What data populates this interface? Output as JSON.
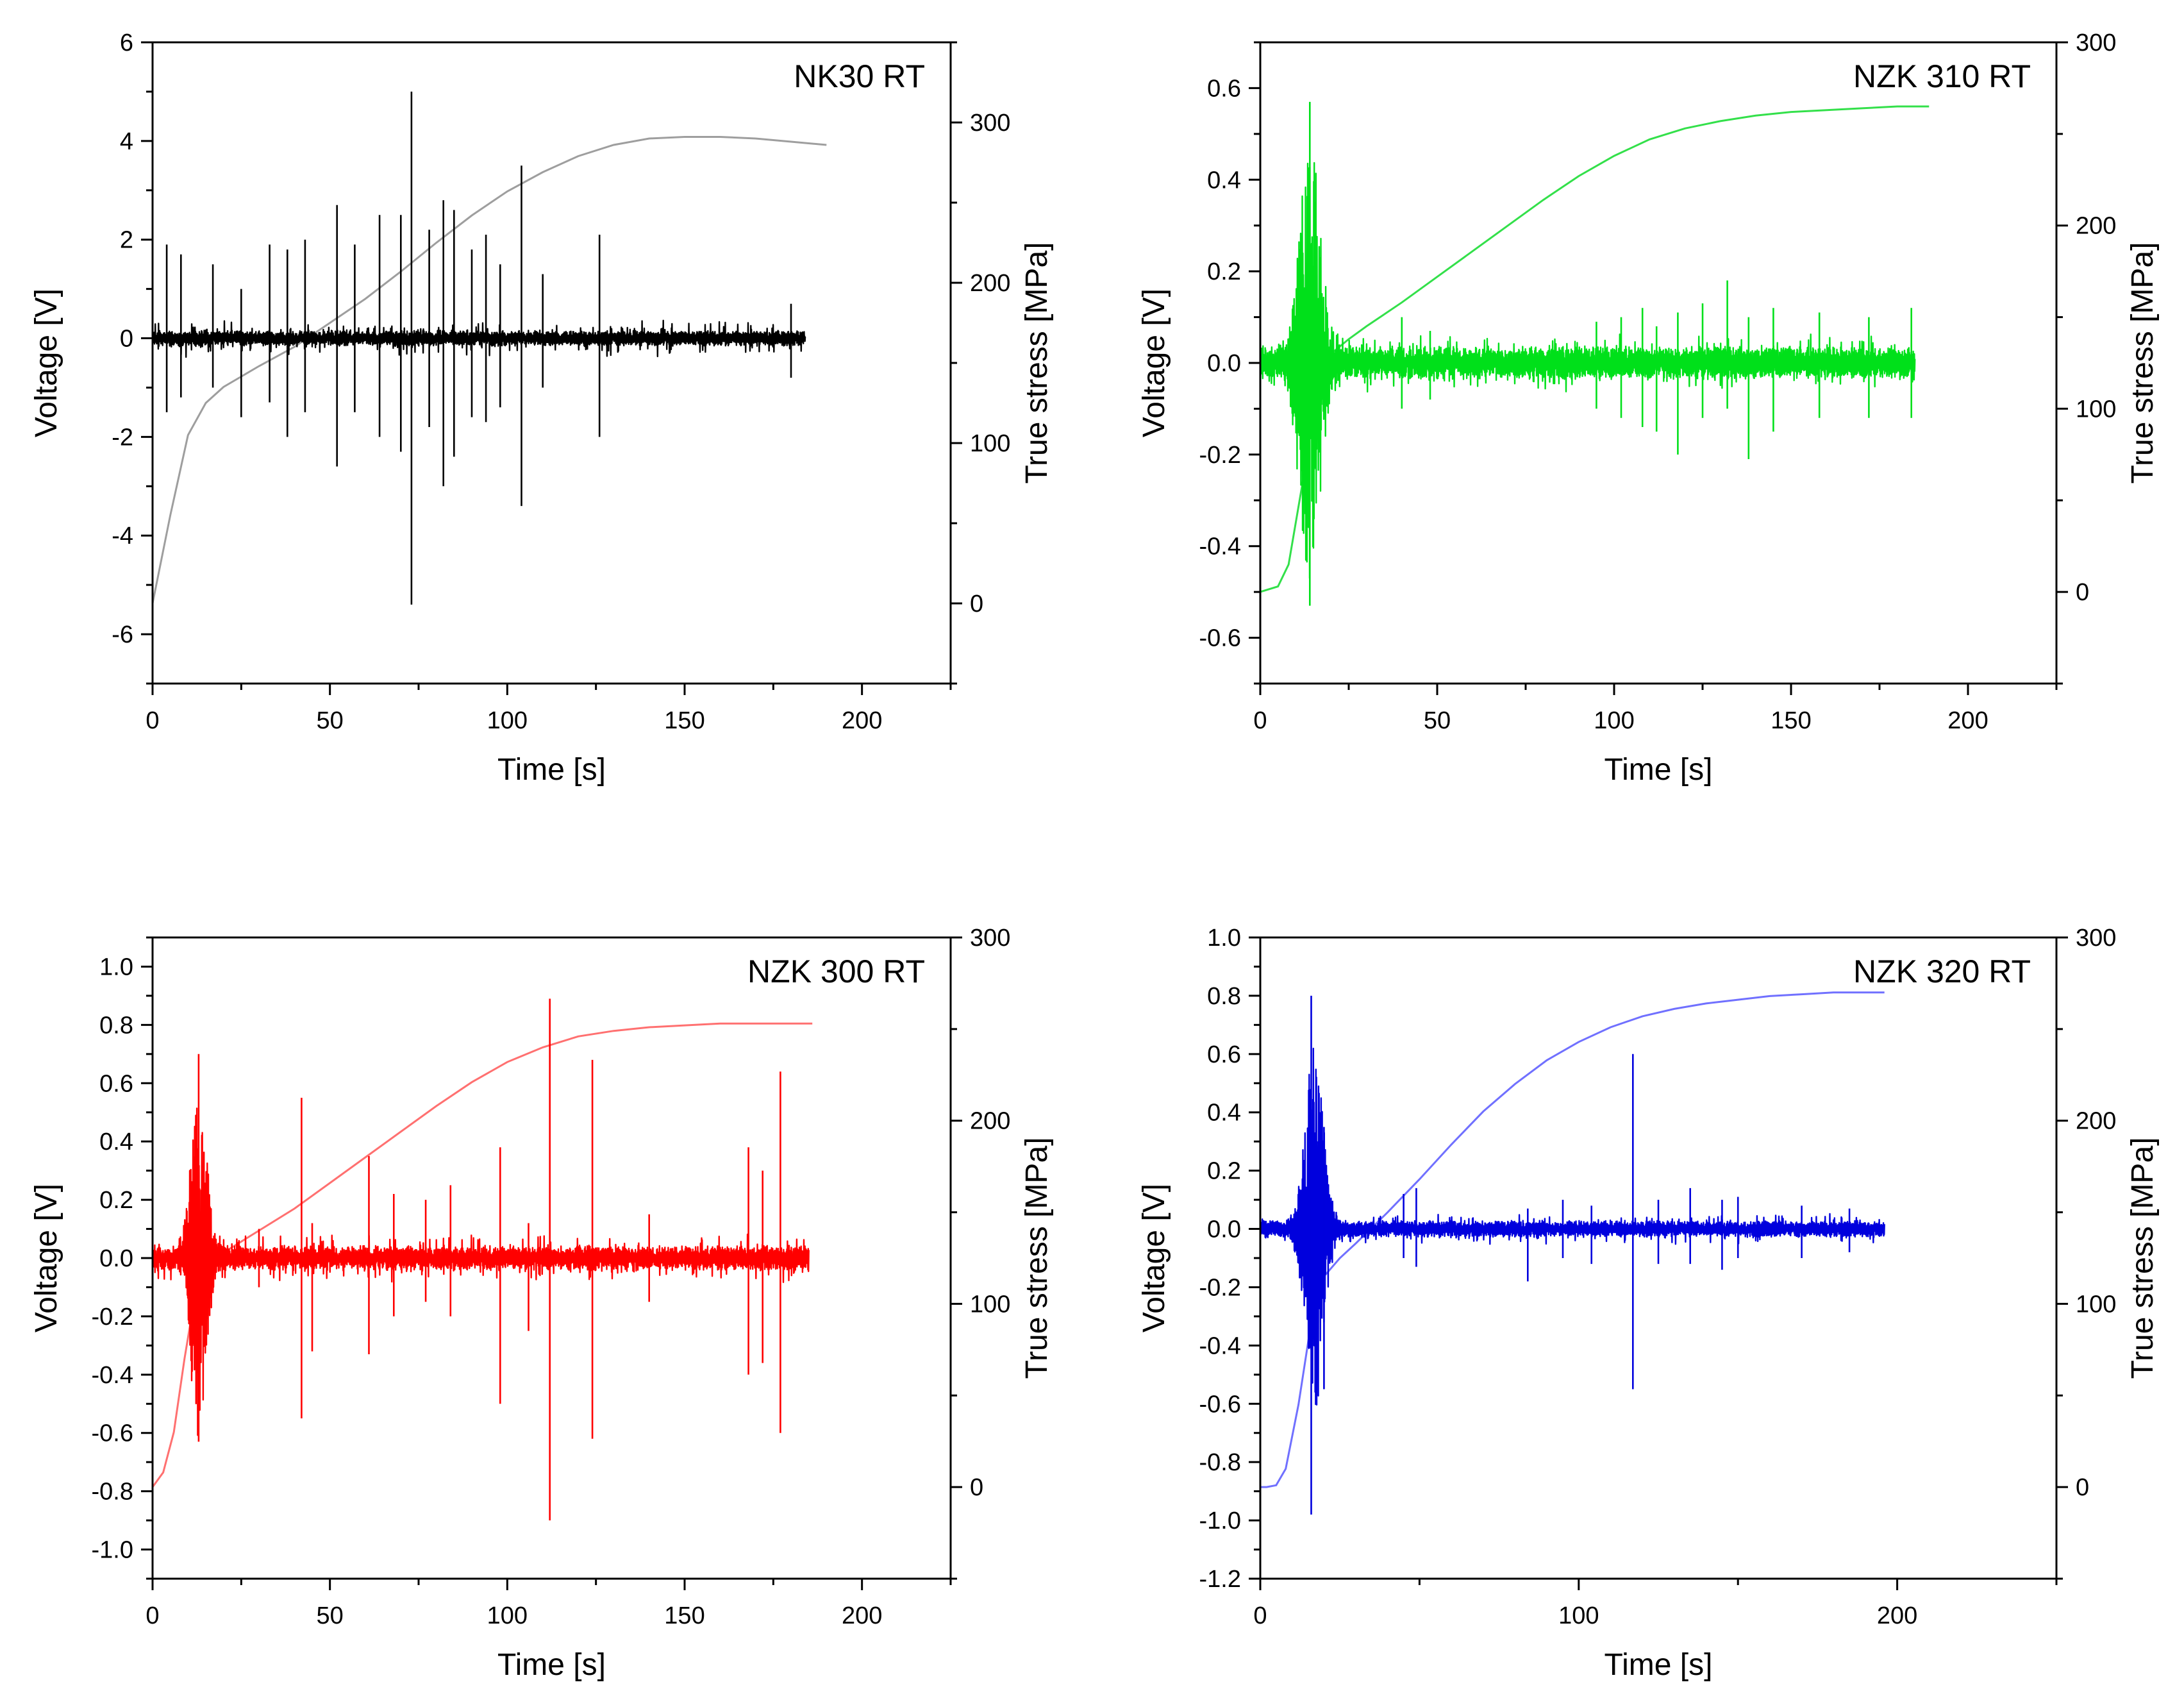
{
  "chart_data": [
    {
      "type": "line",
      "title": "NK30 RT",
      "xlabel": "Time [s]",
      "ylabel": "Voltage [V]",
      "y2label": "True stress [MPa]",
      "xlim": [
        0,
        225
      ],
      "ylim": [
        -7,
        6
      ],
      "y2lim": [
        -50,
        350
      ],
      "xticks": [
        0,
        50,
        100,
        150,
        200
      ],
      "yticks": [
        -6,
        -4,
        -2,
        0,
        2,
        4,
        6
      ],
      "y2ticks": [
        0,
        100,
        200,
        300
      ],
      "color": "#000000",
      "stress_color": "#9e9e9e",
      "signal_end": 184,
      "signal": {
        "noise": 0.05,
        "background_noise": 0.35,
        "burst_t": 0,
        "burst_amp": 0,
        "burst_width": 0
      },
      "spikes": [
        {
          "t": 4,
          "pos": 1.9,
          "neg": -1.5
        },
        {
          "t": 8,
          "pos": 1.7,
          "neg": -1.2
        },
        {
          "t": 17,
          "pos": 1.5,
          "neg": -1.0
        },
        {
          "t": 25,
          "pos": 1.0,
          "neg": -1.6
        },
        {
          "t": 33,
          "pos": 1.9,
          "neg": -1.3
        },
        {
          "t": 38,
          "pos": 1.8,
          "neg": -2.0
        },
        {
          "t": 43,
          "pos": 2.0,
          "neg": -1.5
        },
        {
          "t": 52,
          "pos": 2.7,
          "neg": -2.6
        },
        {
          "t": 57,
          "pos": 1.9,
          "neg": -1.5
        },
        {
          "t": 64,
          "pos": 2.5,
          "neg": -2.0
        },
        {
          "t": 70,
          "pos": 2.5,
          "neg": -2.3
        },
        {
          "t": 73,
          "pos": 5.0,
          "neg": -5.4
        },
        {
          "t": 78,
          "pos": 2.2,
          "neg": -1.8
        },
        {
          "t": 82,
          "pos": 2.8,
          "neg": -3.0
        },
        {
          "t": 85,
          "pos": 2.6,
          "neg": -2.4
        },
        {
          "t": 90,
          "pos": 1.8,
          "neg": -1.6
        },
        {
          "t": 94,
          "pos": 2.1,
          "neg": -1.7
        },
        {
          "t": 98,
          "pos": 1.5,
          "neg": -1.4
        },
        {
          "t": 104,
          "pos": 3.5,
          "neg": -3.4
        },
        {
          "t": 110,
          "pos": 1.3,
          "neg": -1.0
        },
        {
          "t": 126,
          "pos": 2.1,
          "neg": -2.0
        },
        {
          "t": 180,
          "pos": 0.7,
          "neg": -0.8
        }
      ],
      "stress": {
        "t": [
          0,
          5,
          10,
          15,
          20,
          30,
          40,
          50,
          60,
          70,
          80,
          90,
          100,
          110,
          120,
          130,
          140,
          150,
          160,
          170,
          180,
          190
        ],
        "mpa": [
          0,
          55,
          105,
          125,
          135,
          148,
          160,
          175,
          190,
          207,
          225,
          242,
          257,
          269,
          279,
          286,
          290,
          291,
          291,
          290,
          288,
          286
        ]
      }
    },
    {
      "type": "line",
      "title": "NZK 310 RT",
      "xlabel": "Time [s]",
      "ylabel": "Voltage [V]",
      "y2label": "True stress [MPa]",
      "xlim": [
        0,
        225
      ],
      "ylim": [
        -0.7,
        0.7
      ],
      "y2lim": [
        -50,
        300
      ],
      "xticks": [
        0,
        50,
        100,
        150,
        200
      ],
      "yticks": [
        -0.6,
        -0.4,
        -0.2,
        0.0,
        0.2,
        0.4,
        0.6
      ],
      "y2ticks": [
        0,
        100,
        200,
        300
      ],
      "color": "#00e01a",
      "stress_color": "#33e04a",
      "signal_end": 185,
      "signal": {
        "noise": 0.02,
        "background_noise": 0.05,
        "burst_t": 14,
        "burst_amp": 0.45,
        "burst_width": 4
      },
      "spikes": [
        {
          "t": 14,
          "pos": 0.57,
          "neg": -0.53
        },
        {
          "t": 40,
          "pos": 0.1,
          "neg": -0.1
        },
        {
          "t": 48,
          "pos": 0.07,
          "neg": -0.08
        },
        {
          "t": 95,
          "pos": 0.09,
          "neg": -0.1
        },
        {
          "t": 102,
          "pos": 0.1,
          "neg": -0.12
        },
        {
          "t": 108,
          "pos": 0.12,
          "neg": -0.14
        },
        {
          "t": 112,
          "pos": 0.08,
          "neg": -0.15
        },
        {
          "t": 118,
          "pos": 0.11,
          "neg": -0.2
        },
        {
          "t": 125,
          "pos": 0.13,
          "neg": -0.12
        },
        {
          "t": 132,
          "pos": 0.18,
          "neg": -0.1
        },
        {
          "t": 138,
          "pos": 0.1,
          "neg": -0.21
        },
        {
          "t": 145,
          "pos": 0.12,
          "neg": -0.15
        },
        {
          "t": 158,
          "pos": 0.11,
          "neg": -0.12
        },
        {
          "t": 172,
          "pos": 0.1,
          "neg": -0.12
        },
        {
          "t": 184,
          "pos": 0.12,
          "neg": -0.12
        }
      ],
      "stress": {
        "t": [
          0,
          5,
          8,
          12,
          16,
          20,
          25,
          30,
          40,
          50,
          60,
          70,
          80,
          90,
          100,
          110,
          120,
          130,
          140,
          150,
          160,
          170,
          180,
          189
        ],
        "mpa": [
          0,
          3,
          15,
          60,
          110,
          130,
          138,
          145,
          158,
          172,
          186,
          200,
          214,
          227,
          238,
          247,
          253,
          257,
          260,
          262,
          263,
          264,
          265,
          265
        ]
      }
    },
    {
      "type": "line",
      "title": "NZK 300 RT",
      "xlabel": "Time [s]",
      "ylabel": "Voltage [V]",
      "y2label": "True stress [MPa]",
      "xlim": [
        0,
        225
      ],
      "ylim": [
        -1.1,
        1.1
      ],
      "y2lim": [
        -50,
        300
      ],
      "xticks": [
        0,
        50,
        100,
        150,
        200
      ],
      "yticks": [
        -1.0,
        -0.8,
        -0.6,
        -0.4,
        -0.2,
        0.0,
        0.2,
        0.4,
        0.6,
        0.8,
        1.0
      ],
      "y2ticks": [
        0,
        100,
        200,
        300
      ],
      "color": "#ff0000",
      "stress_color": "#ff7070",
      "signal_end": 185,
      "signal": {
        "noise": 0.02,
        "background_noise": 0.07,
        "burst_t": 13,
        "burst_amp": 0.55,
        "burst_width": 3
      },
      "spikes": [
        {
          "t": 13,
          "pos": 0.7,
          "neg": -0.63
        },
        {
          "t": 30,
          "pos": 0.1,
          "neg": -0.1
        },
        {
          "t": 42,
          "pos": 0.55,
          "neg": -0.55
        },
        {
          "t": 45,
          "pos": 0.12,
          "neg": -0.32
        },
        {
          "t": 61,
          "pos": 0.35,
          "neg": -0.33
        },
        {
          "t": 68,
          "pos": 0.22,
          "neg": -0.2
        },
        {
          "t": 77,
          "pos": 0.2,
          "neg": -0.15
        },
        {
          "t": 84,
          "pos": 0.25,
          "neg": -0.2
        },
        {
          "t": 98,
          "pos": 0.38,
          "neg": -0.5
        },
        {
          "t": 106,
          "pos": 0.12,
          "neg": -0.25
        },
        {
          "t": 112,
          "pos": 0.89,
          "neg": -0.9
        },
        {
          "t": 124,
          "pos": 0.68,
          "neg": -0.62
        },
        {
          "t": 140,
          "pos": 0.15,
          "neg": -0.15
        },
        {
          "t": 168,
          "pos": 0.38,
          "neg": -0.4
        },
        {
          "t": 172,
          "pos": 0.3,
          "neg": -0.36
        },
        {
          "t": 177,
          "pos": 0.64,
          "neg": -0.6
        }
      ],
      "stress": {
        "t": [
          0,
          3,
          6,
          9,
          12,
          15,
          20,
          25,
          30,
          40,
          50,
          60,
          70,
          80,
          90,
          100,
          110,
          120,
          130,
          140,
          150,
          160,
          170,
          180,
          186
        ],
        "mpa": [
          0,
          8,
          30,
          70,
          105,
          120,
          128,
          134,
          140,
          152,
          166,
          180,
          194,
          208,
          221,
          232,
          240,
          246,
          249,
          251,
          252,
          253,
          253,
          253,
          253
        ]
      }
    },
    {
      "type": "line",
      "title": "NZK 320 RT",
      "xlabel": "Time [s]",
      "ylabel": "Voltage [V]",
      "y2label": "True stress [MPa]",
      "xlim": [
        0,
        250
      ],
      "ylim": [
        -1.2,
        1.0
      ],
      "y2lim": [
        -50,
        300
      ],
      "xticks": [
        0,
        100,
        200
      ],
      "yticks": [
        -1.2,
        -1.0,
        -0.8,
        -0.6,
        -0.4,
        -0.2,
        0.0,
        0.2,
        0.4,
        0.6,
        0.8,
        1.0
      ],
      "y2ticks": [
        0,
        100,
        200,
        300
      ],
      "color": "#0000dd",
      "stress_color": "#7070ff",
      "signal_end": 196,
      "signal": {
        "noise": 0.015,
        "background_noise": 0.04,
        "burst_t": 17,
        "burst_amp": 0.6,
        "burst_width": 4
      },
      "spikes": [
        {
          "t": 16,
          "pos": 0.8,
          "neg": -0.98
        },
        {
          "t": 20,
          "pos": 0.35,
          "neg": -0.55
        },
        {
          "t": 45,
          "pos": 0.12,
          "neg": -0.1
        },
        {
          "t": 49,
          "pos": 0.14,
          "neg": -0.13
        },
        {
          "t": 84,
          "pos": 0.07,
          "neg": -0.18
        },
        {
          "t": 95,
          "pos": 0.1,
          "neg": -0.1
        },
        {
          "t": 104,
          "pos": 0.08,
          "neg": -0.12
        },
        {
          "t": 117,
          "pos": 0.6,
          "neg": -0.55
        },
        {
          "t": 125,
          "pos": 0.1,
          "neg": -0.12
        },
        {
          "t": 135,
          "pos": 0.14,
          "neg": -0.12
        },
        {
          "t": 145,
          "pos": 0.1,
          "neg": -0.14
        },
        {
          "t": 150,
          "pos": 0.11,
          "neg": -0.1
        },
        {
          "t": 170,
          "pos": 0.08,
          "neg": -0.1
        },
        {
          "t": 185,
          "pos": 0.07,
          "neg": -0.08
        }
      ],
      "stress": {
        "t": [
          0,
          2,
          5,
          8,
          12,
          16,
          20,
          25,
          30,
          40,
          50,
          60,
          70,
          80,
          90,
          100,
          110,
          120,
          130,
          140,
          150,
          160,
          170,
          180,
          190,
          196
        ],
        "mpa": [
          0,
          0,
          1,
          10,
          45,
          90,
          115,
          125,
          133,
          150,
          168,
          187,
          205,
          220,
          233,
          243,
          251,
          257,
          261,
          264,
          266,
          268,
          269,
          270,
          270,
          270
        ]
      }
    }
  ]
}
